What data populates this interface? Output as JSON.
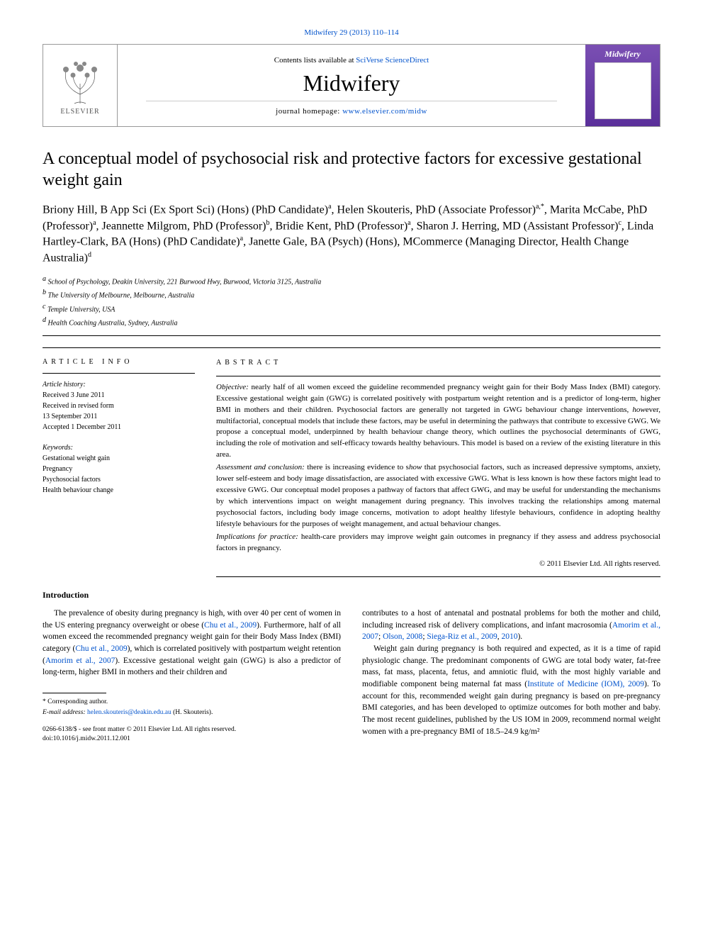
{
  "top_link": {
    "journal": "Midwifery",
    "vol_issue": "29 (2013)",
    "pages": "110–114"
  },
  "header": {
    "contents_prefix": "Contents lists available at ",
    "contents_link": "SciVerse ScienceDirect",
    "journal_name": "Midwifery",
    "homepage_prefix": "journal homepage: ",
    "homepage_url": "www.elsevier.com/midw",
    "publisher": "ELSEVIER",
    "cover_label": "Midwifery"
  },
  "title": "A conceptual model of psychosocial risk and protective factors for excessive gestational weight gain",
  "authors_html": "Briony Hill, B App Sci (Ex Sport Sci) (Hons) (PhD Candidate)<sup>a</sup>, Helen Skouteris, PhD (Associate Professor)<sup>a,*</sup>, Marita McCabe, PhD (Professor)<sup>a</sup>, Jeannette Milgrom, PhD (Professor)<sup>b</sup>, Bridie Kent, PhD (Professor)<sup>a</sup>, Sharon J. Herring, MD (Assistant Professor)<sup>c</sup>, Linda Hartley-Clark, BA (Hons) (PhD Candidate)<sup>a</sup>, Janette Gale, BA (Psych) (Hons), MCommerce (Managing Director, Health Change Australia)<sup>d</sup>",
  "affiliations": [
    {
      "key": "a",
      "text": "School of Psychology, Deakin University, 221 Burwood Hwy, Burwood, Victoria 3125, Australia"
    },
    {
      "key": "b",
      "text": "The University of Melbourne, Melbourne, Australia"
    },
    {
      "key": "c",
      "text": "Temple University, USA"
    },
    {
      "key": "d",
      "text": "Health Coaching Australia, Sydney, Australia"
    }
  ],
  "article_info": {
    "label": "ARTICLE INFO",
    "history_hdr": "Article history:",
    "history": [
      "Received 3 June 2011",
      "Received in revised form",
      "13 September 2011",
      "Accepted 1 December 2011"
    ],
    "keywords_hdr": "Keywords:",
    "keywords": [
      "Gestational weight gain",
      "Pregnancy",
      "Psychosocial factors",
      "Health behaviour change"
    ]
  },
  "abstract": {
    "label": "ABSTRACT",
    "paras": [
      {
        "label": "Objective:",
        "text": " nearly half of all women exceed the guideline recommended pregnancy weight gain for their Body Mass Index (BMI) category. Excessive gestational weight gain (GWG) is correlated positively with postpartum weight retention and is a predictor of long-term, higher BMI in mothers and their children. Psychosocial factors are generally not targeted in GWG behaviour change interventions, however, multifactorial, conceptual models that include these factors, may be useful in determining the pathways that contribute to excessive GWG. We propose a conceptual model, underpinned by health behaviour change theory, which outlines the psychosocial determinants of GWG, including the role of motivation and self-efficacy towards healthy behaviours. This model is based on a review of the existing literature in this area."
      },
      {
        "label": "Assessment and conclusion:",
        "text": " there is increasing evidence to show that psychosocial factors, such as increased depressive symptoms, anxiety, lower self-esteem and body image dissatisfaction, are associated with excessive GWG. What is less known is how these factors might lead to excessive GWG. Our conceptual model proposes a pathway of factors that affect GWG, and may be useful for understanding the mechanisms by which interventions impact on weight management during pregnancy. This involves tracking the relationships among maternal psychosocial factors, including body image concerns, motivation to adopt healthy lifestyle behaviours, confidence in adopting healthy lifestyle behaviours for the purposes of weight management, and actual behaviour changes."
      },
      {
        "label": "Implications for practice:",
        "text": " health-care providers may improve weight gain outcomes in pregnancy if they assess and address psychosocial factors in pregnancy."
      }
    ],
    "copyright": "© 2011 Elsevier Ltd. All rights reserved."
  },
  "body": {
    "heading": "Introduction",
    "paragraphs": [
      "The prevalence of obesity during pregnancy is high, with over 40 per cent of women in the US entering pregnancy overweight or obese (<a>Chu et al., 2009</a>). Furthermore, half of all women exceed the recommended pregnancy weight gain for their Body Mass Index (BMI) category (<a>Chu et al., 2009</a>), which is correlated positively with postpartum weight retention (<a>Amorim et al., 2007</a>). Excessive gestational weight gain (GWG) is also a predictor of long-term, higher BMI in mothers and their children and",
      "contributes to a host of antenatal and postnatal problems for both the mother and child, including increased risk of delivery complications, and infant macrosomia (<a>Amorim et al., 2007</a>; <a>Olson, 2008</a>; <a>Siega-Riz et al., 2009</a>, <a>2010</a>).",
      "Weight gain during pregnancy is both required and expected, as it is a time of rapid physiologic change. The predominant components of GWG are total body water, fat-free mass, fat mass, placenta, fetus, and amniotic fluid, with the most highly variable and modifiable component being maternal fat mass (<a>Institute of Medicine (IOM), 2009</a>). To account for this, recommended weight gain during pregnancy is based on pre-pregnancy BMI categories, and has been developed to optimize outcomes for both mother and baby. The most recent guidelines, published by the US IOM in 2009, recommend normal weight women with a pre-pregnancy BMI of 18.5–24.9 kg/m²"
    ]
  },
  "footnotes": {
    "corresponding": "* Corresponding author.",
    "email_label": "E-mail address:",
    "email": "helen.skouteris@deakin.edu.au",
    "email_who": "(H. Skouteris)."
  },
  "doi": {
    "issn_line": "0266-6138/$ - see front matter © 2011 Elsevier Ltd. All rights reserved.",
    "doi_line": "doi:10.1016/j.midw.2011.12.001"
  },
  "colors": {
    "link": "#0052cc",
    "rule": "#000000",
    "cover_bg_top": "#7a4fb3",
    "cover_bg_bottom": "#5a2f9a"
  }
}
